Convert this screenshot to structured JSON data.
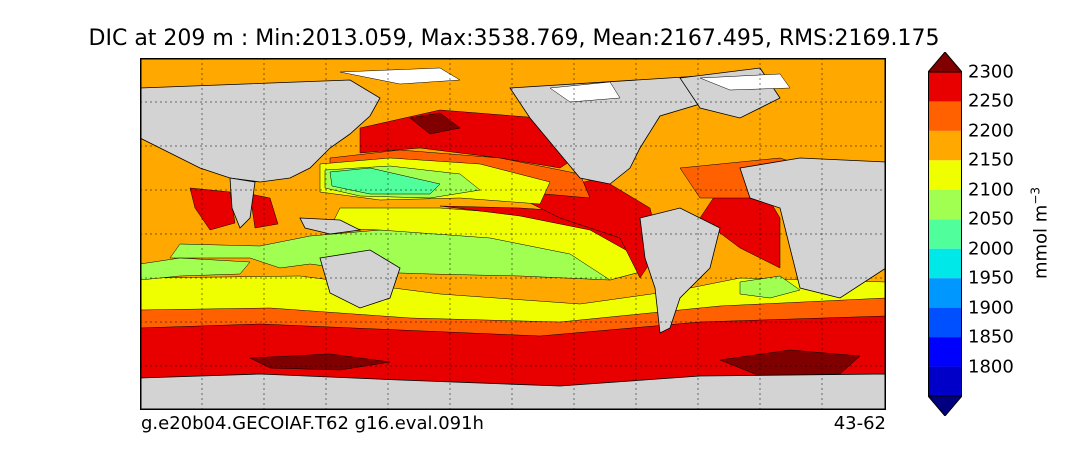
{
  "title": "DIC at 209 m : Min:2013.059, Max:3538.769, Mean:2167.495, RMS:2169.175",
  "caption_left": "g.e20b04.GECOIAF.T62 g16.eval.091h",
  "caption_right": "43-62",
  "colorbar": {
    "unit_base": "mmol m",
    "unit_exp": "−3",
    "ticks": [
      "1800",
      "1850",
      "1900",
      "1950",
      "2000",
      "2050",
      "2100",
      "2150",
      "2200",
      "2250",
      "2300"
    ],
    "colors": {
      "below": "#000080",
      "bins": [
        "#0000c8",
        "#0000ff",
        "#0050ff",
        "#0098ff",
        "#00e8e8",
        "#50ff9c",
        "#a0ff50",
        "#f0ff00",
        "#ffa800",
        "#ff6000",
        "#e80000"
      ],
      "above": "#800000"
    }
  },
  "map": {
    "land_color": "#d3d3d3",
    "ice_color": "#ffffff"
  }
}
